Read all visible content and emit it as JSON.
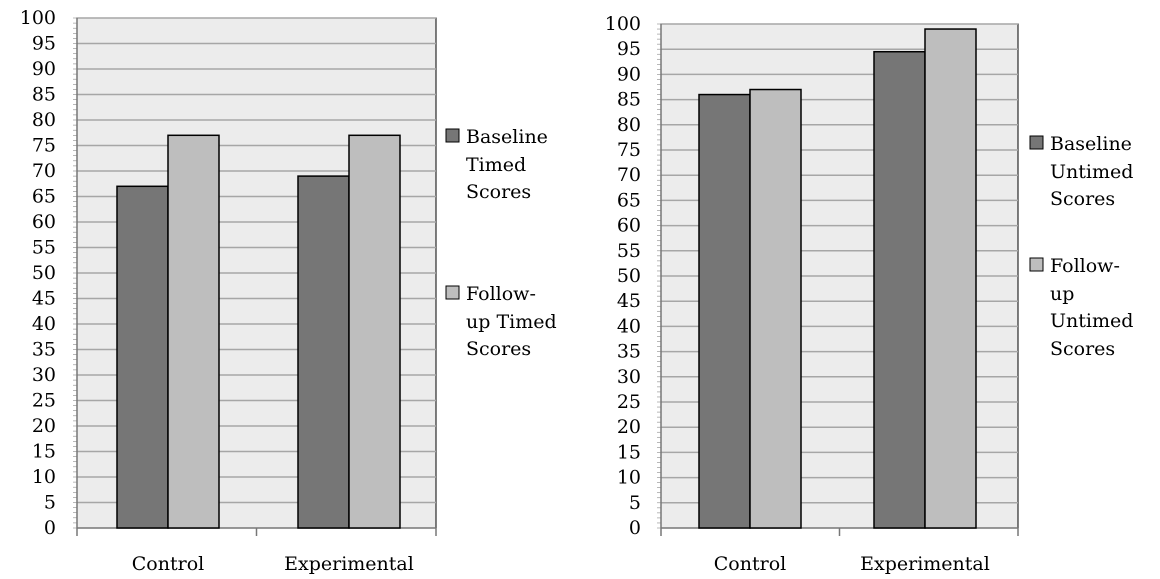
{
  "colors": {
    "plot_bg": "#ececec",
    "grid": "#a6a6a6",
    "baseline_bar": "#767676",
    "followup_bar": "#bebebe",
    "bar_stroke": "#000000"
  },
  "chart_data": [
    {
      "type": "bar",
      "categories": [
        "Control",
        "Experimental"
      ],
      "ylim": [
        0,
        100
      ],
      "yticks": [
        0,
        5,
        10,
        15,
        20,
        25,
        30,
        35,
        40,
        45,
        50,
        55,
        60,
        65,
        70,
        75,
        80,
        85,
        90,
        95,
        100
      ],
      "grid": true,
      "legend_position": "right",
      "series": [
        {
          "name": "Baseline Timed Scores",
          "legend_lines": [
            "Baseline",
            "Timed",
            "Scores"
          ],
          "values": [
            67,
            69
          ]
        },
        {
          "name": "Follow-up Timed Scores",
          "legend_lines": [
            "Follow-",
            "up Timed",
            "Scores"
          ],
          "values": [
            77,
            77
          ]
        }
      ]
    },
    {
      "type": "bar",
      "categories": [
        "Control",
        "Experimental"
      ],
      "ylim": [
        0,
        100
      ],
      "yticks": [
        0,
        5,
        10,
        15,
        20,
        25,
        30,
        35,
        40,
        45,
        50,
        55,
        60,
        65,
        70,
        75,
        80,
        85,
        90,
        95,
        100
      ],
      "grid": true,
      "legend_position": "right",
      "series": [
        {
          "name": "Baseline Untimed Scores",
          "legend_lines": [
            "Baseline",
            "Untimed",
            "Scores"
          ],
          "values": [
            86,
            94.5
          ]
        },
        {
          "name": "Follow-up Untimed Scores",
          "legend_lines": [
            "Follow-",
            "up",
            "Untimed",
            "Scores"
          ],
          "values": [
            87,
            99
          ]
        }
      ]
    }
  ]
}
